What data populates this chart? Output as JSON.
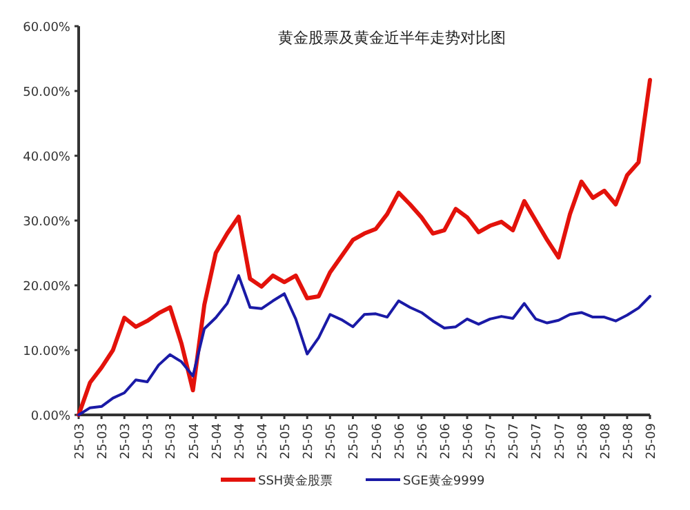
{
  "chart_data": {
    "type": "line",
    "title": "黄金股票及黄金近半年走势对比图",
    "categories": [
      "25-03",
      null,
      "25-03",
      null,
      "25-03",
      null,
      "25-03",
      null,
      "25-03",
      null,
      "25-04",
      null,
      "25-04",
      null,
      "25-04",
      null,
      "25-04",
      null,
      "25-05",
      null,
      "25-05",
      null,
      "25-05",
      null,
      "25-05",
      null,
      "25-06",
      null,
      "25-06",
      null,
      "25-06",
      null,
      "25-06",
      null,
      "25-06",
      null,
      "25-07",
      null,
      "25-07",
      null,
      "25-07",
      null,
      "25-07",
      null,
      "25-08",
      null,
      "25-08",
      null,
      "25-08",
      null,
      "25-09"
    ],
    "ylim": [
      0,
      60
    ],
    "yticks": [
      {
        "value": 0,
        "label": "0.00%"
      },
      {
        "value": 10,
        "label": "10.00%"
      },
      {
        "value": 20,
        "label": "20.00%"
      },
      {
        "value": 30,
        "label": "30.00%"
      },
      {
        "value": 40,
        "label": "40.00%"
      },
      {
        "value": 50,
        "label": "50.00%"
      },
      {
        "value": 60,
        "label": "60.00%"
      }
    ],
    "grid": false,
    "legend": "bottom",
    "marker": "none",
    "line_style": "solid",
    "series": [
      {
        "name": "SSH黄金股票",
        "color": "#e3120b",
        "values": [
          0,
          5,
          7.3,
          10,
          15,
          13.6,
          14.5,
          15.7,
          16.6,
          11,
          3.8,
          17,
          25,
          28,
          30.6,
          21,
          19.8,
          21.5,
          20.5,
          21.5,
          18,
          18.3,
          22,
          24.5,
          27,
          28,
          28.7,
          31,
          34.3,
          32.5,
          30.5,
          28,
          28.5,
          31.8,
          30.5,
          28.2,
          29.2,
          29.8,
          28.5,
          33,
          30,
          27,
          24.3,
          31,
          36,
          33.5,
          34.6,
          32.5,
          37,
          39,
          51.7
        ]
      },
      {
        "name": "SGE黄金9999",
        "color": "#1a1aa6",
        "values": [
          0,
          1.1,
          1.3,
          2.6,
          3.4,
          5.4,
          5.1,
          7.7,
          9.3,
          8.2,
          6,
          13.3,
          15,
          17.2,
          21.5,
          16.6,
          16.4,
          17.6,
          18.7,
          14.8,
          9.4,
          11.9,
          15.5,
          14.7,
          13.6,
          15.5,
          15.6,
          15.1,
          17.6,
          16.6,
          15.8,
          14.5,
          13.4,
          13.6,
          14.8,
          14,
          14.8,
          15.2,
          14.9,
          17.2,
          14.8,
          14.2,
          14.6,
          15.5,
          15.8,
          15.1,
          15.1,
          14.5,
          15.4,
          16.5,
          18.3
        ]
      }
    ]
  }
}
